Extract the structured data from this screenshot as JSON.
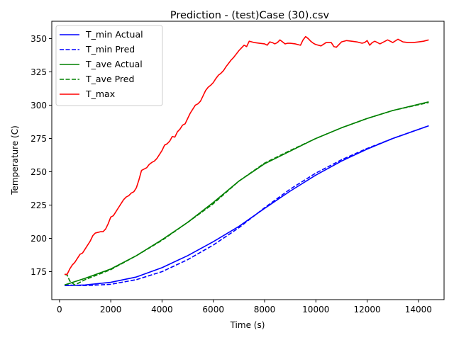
{
  "chart_data": {
    "type": "line",
    "title": "Prediction - (test)Case (30).csv",
    "xlabel": "Time (s)",
    "ylabel": "Temperature (C)",
    "xlim": [
      -300,
      15000
    ],
    "ylim": [
      154,
      363
    ],
    "xticks": [
      0,
      2000,
      4000,
      6000,
      8000,
      10000,
      12000,
      14000
    ],
    "yticks": [
      175,
      200,
      225,
      250,
      275,
      300,
      325,
      350
    ],
    "grid": false,
    "legend_position": "top-left",
    "series": [
      {
        "name": "T_min Actual",
        "color": "#0000ff",
        "dash": "solid",
        "x": [
          200,
          1000,
          2000,
          3000,
          4000,
          5000,
          6000,
          7000,
          8000,
          9000,
          10000,
          11000,
          12000,
          13000,
          14400
        ],
        "y": [
          164.5,
          165,
          167,
          171,
          178,
          187,
          197.5,
          209,
          222.5,
          235.5,
          247.5,
          258,
          267,
          275,
          284.5
        ]
      },
      {
        "name": "T_min Pred",
        "color": "#0000ff",
        "dash": "dashed",
        "x": [
          200,
          1000,
          2000,
          3000,
          4000,
          5000,
          6000,
          7000,
          8000,
          9000,
          10000,
          11000,
          12000,
          13000,
          14400
        ],
        "y": [
          165,
          164.5,
          165.5,
          169,
          175,
          184,
          195,
          208,
          223,
          237,
          249,
          259,
          267.5,
          275,
          284.5
        ]
      },
      {
        "name": "T_ave Actual",
        "color": "#008000",
        "dash": "solid",
        "x": [
          200,
          1000,
          2000,
          3000,
          4000,
          5000,
          6000,
          7000,
          8000,
          9000,
          10000,
          11000,
          12000,
          13000,
          14400
        ],
        "y": [
          165,
          170,
          177,
          187,
          199,
          212,
          227,
          243,
          256,
          265.5,
          275,
          283,
          290,
          296,
          302.5
        ]
      },
      {
        "name": "T_ave Pred",
        "color": "#008000",
        "dash": "dashed",
        "x": [
          200,
          300,
          400,
          600,
          1000,
          2000,
          3000,
          4000,
          5000,
          6000,
          7000,
          8000,
          9000,
          10000,
          11000,
          12000,
          13000,
          14400
        ],
        "y": [
          173,
          172.5,
          168,
          165,
          169,
          176.5,
          187,
          198.5,
          212,
          226,
          243,
          256.5,
          266,
          275,
          283,
          290,
          296,
          302
        ]
      },
      {
        "name": "T_max",
        "color": "#ff0000",
        "dash": "solid",
        "x": [
          200,
          300,
          400,
          500,
          600,
          700,
          800,
          900,
          1000,
          1100,
          1200,
          1300,
          1400,
          1500,
          1600,
          1700,
          1800,
          1900,
          2000,
          2100,
          2200,
          2300,
          2400,
          2500,
          2600,
          2700,
          2800,
          2900,
          3000,
          3100,
          3200,
          3300,
          3400,
          3500,
          3600,
          3700,
          3800,
          3900,
          4000,
          4100,
          4200,
          4300,
          4400,
          4500,
          4600,
          4700,
          4800,
          4900,
          5000,
          5100,
          5200,
          5300,
          5400,
          5500,
          5600,
          5700,
          5800,
          5900,
          6000,
          6100,
          6200,
          6300,
          6400,
          6500,
          6600,
          6700,
          6800,
          6900,
          7000,
          7100,
          7200,
          7300,
          7400,
          7500,
          7600,
          7800,
          8000,
          8100,
          8200,
          8300,
          8400,
          8500,
          8600,
          8700,
          8800,
          8900,
          9000,
          9200,
          9400,
          9500,
          9600,
          9700,
          9800,
          9900,
          10000,
          10200,
          10400,
          10600,
          10700,
          10800,
          11000,
          11200,
          11400,
          11600,
          11800,
          11900,
          12000,
          12100,
          12200,
          12300,
          12400,
          12500,
          12600,
          12800,
          13000,
          13200,
          13400,
          13600,
          13800,
          14000,
          14200,
          14400
        ],
        "y": [
          173,
          173,
          177,
          180,
          182,
          185,
          188,
          189,
          192,
          195,
          198,
          202,
          204,
          204.5,
          205,
          205,
          207,
          211,
          216,
          217,
          220,
          223,
          226,
          229,
          231,
          232,
          234,
          235,
          238,
          244,
          251,
          252,
          253,
          255.5,
          257,
          258,
          260,
          263,
          266,
          270,
          271,
          273,
          276.5,
          276,
          280,
          282,
          285,
          286,
          290,
          294,
          297,
          300,
          301,
          303,
          307,
          311,
          313.5,
          315,
          317,
          320,
          322.5,
          324,
          326,
          329,
          331.5,
          334,
          336,
          338.5,
          341,
          343,
          345,
          344,
          348,
          347.5,
          347,
          346.5,
          346,
          345,
          347.5,
          347,
          346,
          347,
          349,
          347.5,
          346,
          346.5,
          346.5,
          346,
          345,
          349,
          351.5,
          350,
          348,
          346.5,
          345.5,
          344.5,
          347,
          347,
          344,
          343.5,
          347.5,
          348.5,
          348,
          347.5,
          346.5,
          347,
          348.5,
          345,
          347,
          348,
          347,
          346,
          347,
          349,
          347,
          349.5,
          347.5,
          347,
          347,
          347.5,
          348,
          349
        ]
      }
    ]
  }
}
